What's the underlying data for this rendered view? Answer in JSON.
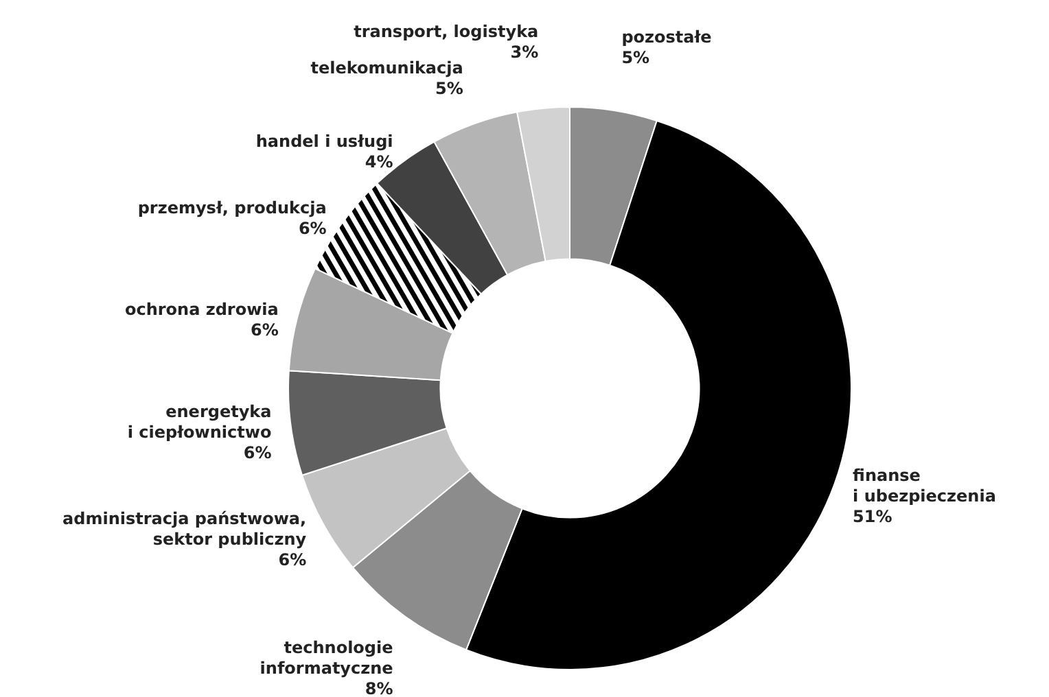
{
  "chart_data": {
    "type": "donut",
    "categories": [
      "pozostałe",
      "finanse\ni ubezpieczenia",
      "technologie\ninformatyczne",
      "administracja państwowa,\nsektor publiczny",
      "energetyka\ni ciepłownictwo",
      "ochrona zdrowia",
      "przemysł, produkcja",
      "handel i usługi",
      "telekomunikacja",
      "transport, logistyka"
    ],
    "values": [
      5,
      51,
      8,
      6,
      6,
      6,
      6,
      4,
      5,
      3
    ],
    "value_labels": [
      "5%",
      "51%",
      "8%",
      "6%",
      "6%",
      "6%",
      "6%",
      "4%",
      "5%",
      "3%"
    ],
    "colors": [
      "#8c8c8c",
      "#000000",
      "#8c8c8c",
      "#c3c3c3",
      "#5f5f5f",
      "#a6a6a6",
      "#000000",
      "#414141",
      "#b4b4b4",
      "#d2d2d2"
    ]
  }
}
